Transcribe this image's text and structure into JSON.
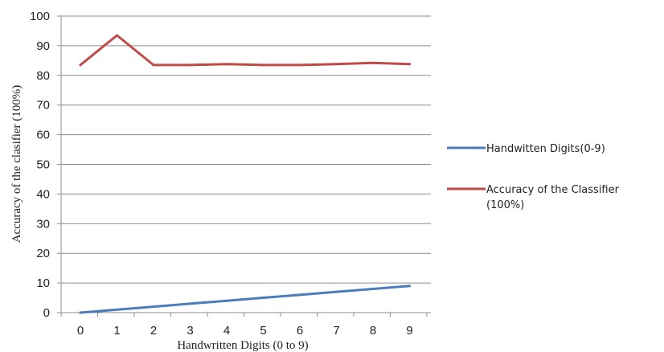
{
  "chart_data": {
    "type": "line",
    "x": [
      0,
      1,
      2,
      3,
      4,
      5,
      6,
      7,
      8,
      9
    ],
    "xticks": [
      "0",
      "1",
      "2",
      "3",
      "4",
      "5",
      "6",
      "7",
      "8",
      "9"
    ],
    "yticks": [
      "0",
      "10",
      "20",
      "30",
      "40",
      "50",
      "60",
      "70",
      "80",
      "90",
      "100"
    ],
    "ylim": [
      0,
      100
    ],
    "xlabel": "Handwritten Digits (0 to 9)",
    "ylabel": "Accuracy of the clasifier (100%)",
    "grid": "horizontal",
    "legend_position": "right",
    "series": [
      {
        "name": "Handwitten Digits(0-9)",
        "legend_lines": [
          "Handwitten Digits(0-9)"
        ],
        "color": "#4a7ebb",
        "values": [
          0,
          1,
          2,
          3,
          4,
          5,
          6,
          7,
          8,
          9
        ]
      },
      {
        "name": "Accuracy of the Classifier (100%)",
        "legend_lines": [
          "Accuracy of the Classifier",
          "(100%)"
        ],
        "color": "#be4b48",
        "values": [
          83.5,
          93.5,
          83.5,
          83.5,
          83.8,
          83.5,
          83.5,
          83.8,
          84.2,
          83.8
        ]
      }
    ]
  }
}
